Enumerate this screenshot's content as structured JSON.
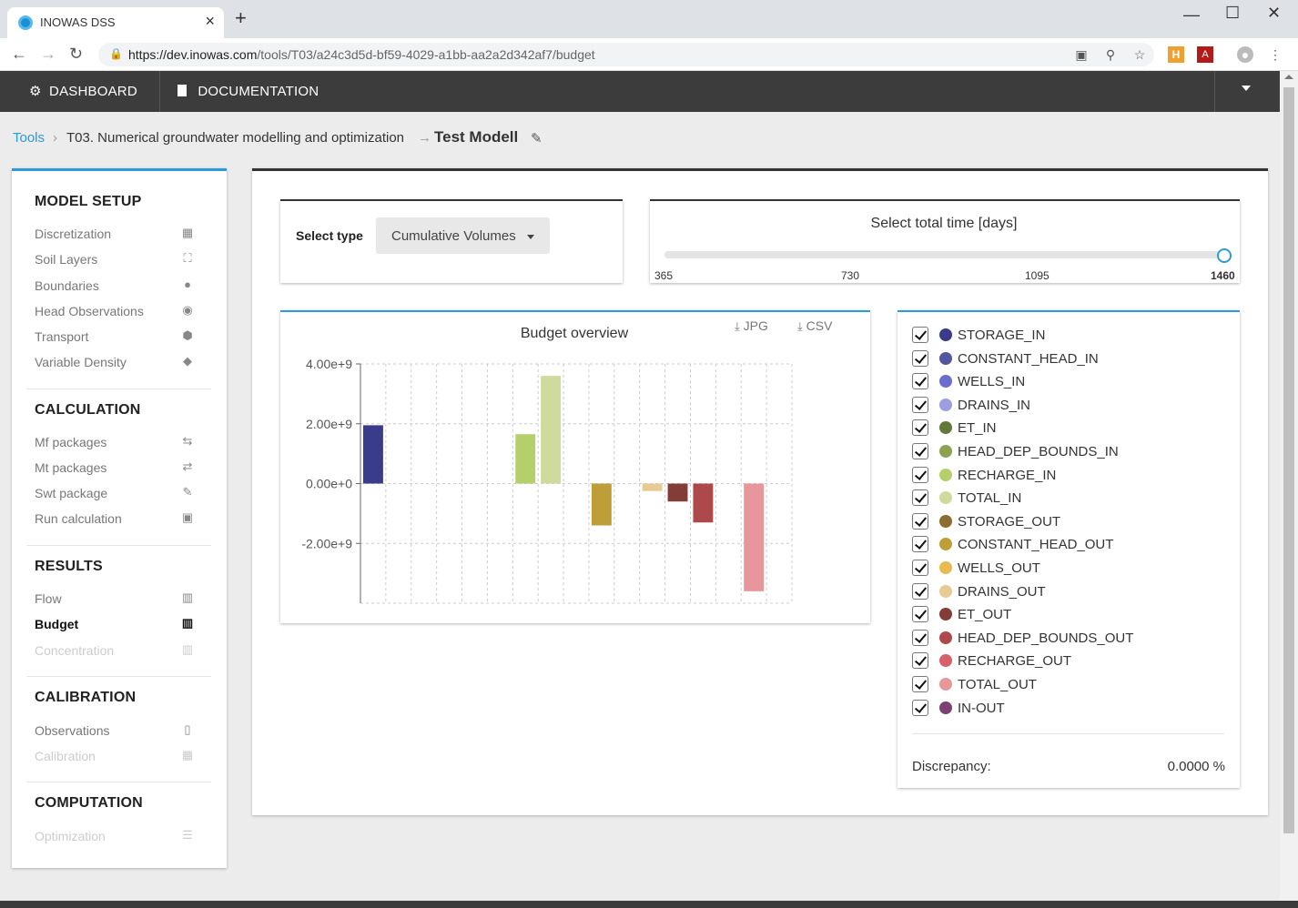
{
  "browser": {
    "tab_title": "INOWAS DSS",
    "url_host": "https://dev.inowas.com",
    "url_path": "/tools/T03/a24c3d5d-bf59-4029-a1bb-aa2a2d342af7/budget"
  },
  "navbar": {
    "dashboard": "DASHBOARD",
    "documentation": "DOCUMENTATION"
  },
  "breadcrumb": {
    "root": "Tools",
    "tool": "T03. Numerical groundwater modelling and optimization",
    "model": "Test Modell"
  },
  "sidebar": {
    "sections": [
      {
        "title": "MODEL SETUP",
        "items": [
          {
            "label": "Discretization",
            "icon": "calendar-icon"
          },
          {
            "label": "Soil Layers",
            "icon": "expand-icon"
          },
          {
            "label": "Boundaries",
            "icon": "map-marker-icon"
          },
          {
            "label": "Head Observations",
            "icon": "eye-icon"
          },
          {
            "label": "Transport",
            "icon": "cube-icon"
          },
          {
            "label": "Variable Density",
            "icon": "diamond-icon"
          }
        ]
      },
      {
        "title": "CALCULATION",
        "items": [
          {
            "label": "Mf packages",
            "icon": "retweet-icon"
          },
          {
            "label": "Mt packages",
            "icon": "exchange-icon"
          },
          {
            "label": "Swt package",
            "icon": "eyedropper-icon"
          },
          {
            "label": "Run calculation",
            "icon": "save-icon"
          }
        ]
      },
      {
        "title": "RESULTS",
        "items": [
          {
            "label": "Flow",
            "icon": "bar-chart-icon"
          },
          {
            "label": "Budget",
            "icon": "bar-chart-icon",
            "active": true
          },
          {
            "label": "Concentration",
            "icon": "bar-chart-icon",
            "disabled": true
          }
        ]
      },
      {
        "title": "CALIBRATION",
        "items": [
          {
            "label": "Observations",
            "icon": "clipboard-icon"
          },
          {
            "label": "Calibration",
            "icon": "calculator-icon",
            "disabled": true
          }
        ]
      },
      {
        "title": "COMPUTATION",
        "items": [
          {
            "label": "Optimization",
            "icon": "sliders-icon",
            "disabled": true
          }
        ]
      }
    ]
  },
  "select_type": {
    "label": "Select type",
    "value": "Cumulative Volumes"
  },
  "time_select": {
    "title": "Select total time [days]",
    "ticks": [
      "365",
      "730",
      "1095",
      "1460"
    ],
    "selected": "1460"
  },
  "downloads": {
    "jpg": "JPG",
    "csv": "CSV"
  },
  "chart_data": {
    "type": "bar",
    "title": "Budget overview",
    "xlabel": "",
    "ylabel": "",
    "ylim": [
      -4000000000.0,
      4000000000.0
    ],
    "yticks": [
      "4.00e+9",
      "2.00e+9",
      "0.00e+0",
      "-2.00e+9"
    ],
    "ytick_values": [
      4000000000.0,
      2000000000.0,
      0,
      -2000000000.0
    ],
    "grid": true,
    "categories": [
      "STORAGE_IN",
      "CONSTANT_HEAD_IN",
      "WELLS_IN",
      "DRAINS_IN",
      "ET_IN",
      "HEAD_DEP_BOUNDS_IN",
      "RECHARGE_IN",
      "TOTAL_IN",
      "STORAGE_OUT",
      "CONSTANT_HEAD_OUT",
      "WELLS_OUT",
      "DRAINS_OUT",
      "ET_OUT",
      "HEAD_DEP_BOUNDS_OUT",
      "RECHARGE_OUT",
      "TOTAL_OUT",
      "IN-OUT"
    ],
    "values": [
      1950000000.0,
      0,
      0,
      0,
      0,
      0,
      1650000000.0,
      3600000000.0,
      0,
      -1400000000.0,
      0,
      -250000000.0,
      -600000000.0,
      -1300000000.0,
      0,
      -3600000000.0,
      0
    ],
    "colors": [
      "#393b8b",
      "#5255a0",
      "#6b6ecf",
      "#9c9ede",
      "#637939",
      "#8ca252",
      "#b5cf6b",
      "#cedb9c",
      "#8c6d31",
      "#bd9e39",
      "#e7ba52",
      "#e7cb94",
      "#843c39",
      "#ad494a",
      "#d6616b",
      "#e7969c",
      "#7b4173"
    ]
  },
  "legend": {
    "discrepancy_label": "Discrepancy:",
    "discrepancy_value": "0.0000 %"
  }
}
